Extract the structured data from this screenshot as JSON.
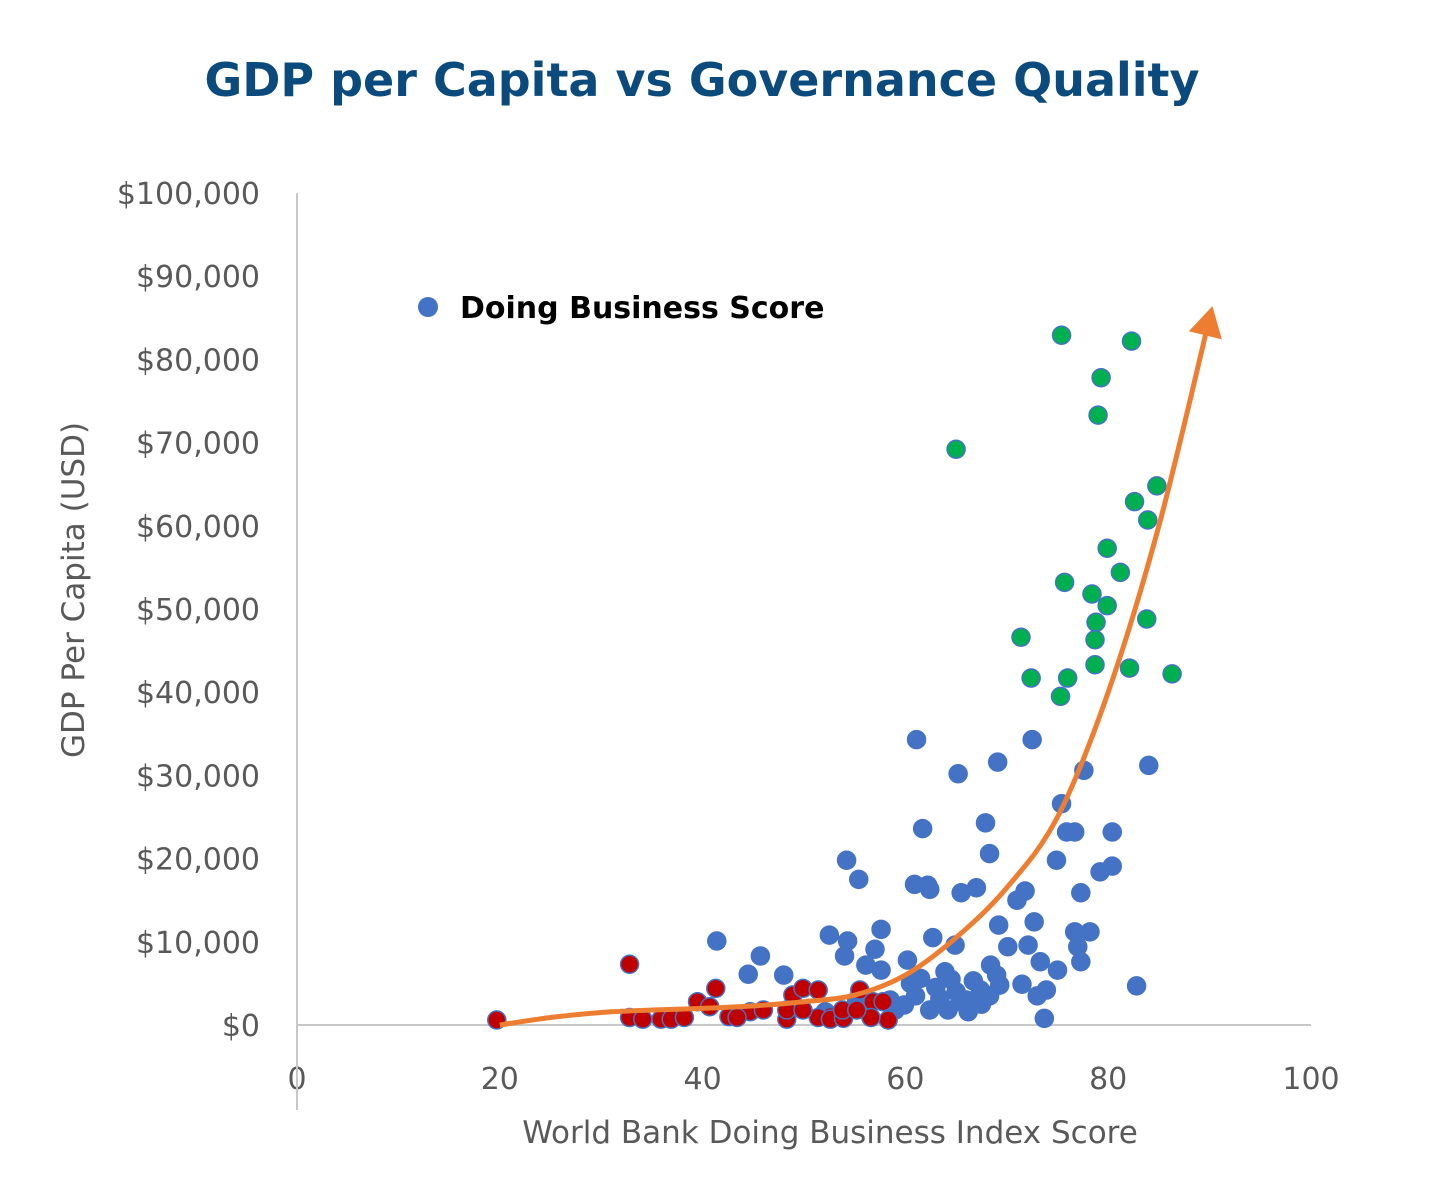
{
  "chart_data": {
    "type": "scatter",
    "title": "GDP per Capita vs Governance Quality",
    "xlabel": "World Bank Doing Business Index Score",
    "ylabel": "GDP Per Capita (USD)",
    "xlim": [
      0,
      100
    ],
    "ylim": [
      0,
      100000
    ],
    "x_ticks": [
      "0",
      "20",
      "40",
      "60",
      "80",
      "100"
    ],
    "y_ticks": [
      "$0",
      "$10,000",
      "$20,000",
      "$30,000",
      "$40,000",
      "$50,000",
      "$60,000",
      "$70,000",
      "$80,000",
      "$90,000",
      "$100,000"
    ],
    "grid": false,
    "legend": {
      "placement": "top-left",
      "entries": [
        "Doing Business Score"
      ]
    },
    "colors": {
      "blue": "#4472c4",
      "green": "#00b050",
      "red": "#c00000",
      "trend": "#ed7d31",
      "title": "#0b4a7d"
    },
    "series": [
      {
        "name": "Doing Business Score",
        "color": "#4472c4",
        "points": [
          [
            61.1,
            34300
          ],
          [
            72.5,
            34300
          ],
          [
            84.0,
            31200
          ],
          [
            69.1,
            31600
          ],
          [
            65.2,
            30200
          ],
          [
            77.6,
            30600
          ],
          [
            75.4,
            26600
          ],
          [
            61.7,
            23600
          ],
          [
            67.9,
            24300
          ],
          [
            75.9,
            23200
          ],
          [
            76.7,
            23200
          ],
          [
            80.4,
            23200
          ],
          [
            68.3,
            20600
          ],
          [
            54.2,
            19800
          ],
          [
            74.9,
            19800
          ],
          [
            80.4,
            19100
          ],
          [
            79.2,
            18400
          ],
          [
            55.4,
            17500
          ],
          [
            60.9,
            16900
          ],
          [
            62.2,
            16800
          ],
          [
            62.4,
            16300
          ],
          [
            65.5,
            15900
          ],
          [
            67.0,
            16500
          ],
          [
            71.8,
            16100
          ],
          [
            77.3,
            15900
          ],
          [
            71.0,
            15000
          ],
          [
            72.7,
            12400
          ],
          [
            57.6,
            11500
          ],
          [
            69.2,
            12000
          ],
          [
            76.7,
            11200
          ],
          [
            78.2,
            11200
          ],
          [
            52.5,
            10800
          ],
          [
            41.4,
            10100
          ],
          [
            54.3,
            10100
          ],
          [
            62.7,
            10500
          ],
          [
            72.1,
            9600
          ],
          [
            70.1,
            9400
          ],
          [
            77.0,
            9400
          ],
          [
            64.9,
            9600
          ],
          [
            57.0,
            9100
          ],
          [
            45.7,
            8300
          ],
          [
            54.0,
            8300
          ],
          [
            60.2,
            7800
          ],
          [
            73.3,
            7600
          ],
          [
            77.3,
            7600
          ],
          [
            56.1,
            7200
          ],
          [
            68.4,
            7200
          ],
          [
            57.6,
            6600
          ],
          [
            75.0,
            6600
          ],
          [
            44.5,
            6100
          ],
          [
            48.0,
            6000
          ],
          [
            69.0,
            6000
          ],
          [
            61.5,
            5600
          ],
          [
            63.9,
            6400
          ],
          [
            71.5,
            4900
          ],
          [
            82.8,
            4700
          ],
          [
            66.7,
            5300
          ],
          [
            73.9,
            4200
          ],
          [
            73.0,
            3500
          ],
          [
            63.4,
            3200
          ],
          [
            65.4,
            2800
          ],
          [
            68.3,
            3500
          ],
          [
            59.9,
            2400
          ],
          [
            64.2,
            1800
          ],
          [
            66.2,
            1600
          ],
          [
            73.7,
            800
          ],
          [
            59.0,
            1800
          ],
          [
            58.5,
            3000
          ],
          [
            55.2,
            3000
          ],
          [
            52.1,
            1600
          ],
          [
            67.4,
            4200
          ],
          [
            62.4,
            1800
          ],
          [
            69.3,
            4800
          ],
          [
            63.0,
            4500
          ],
          [
            65.0,
            4000
          ],
          [
            61.0,
            3500
          ],
          [
            60.5,
            5000
          ],
          [
            64.5,
            5500
          ],
          [
            66.0,
            3000
          ],
          [
            67.5,
            2500
          ]
        ]
      },
      {
        "color": "#00b050",
        "points": [
          [
            75.4,
            82900
          ],
          [
            82.3,
            82200
          ],
          [
            79.3,
            77800
          ],
          [
            79.0,
            73300
          ],
          [
            65.0,
            69200
          ],
          [
            84.8,
            64800
          ],
          [
            82.6,
            62900
          ],
          [
            83.9,
            60700
          ],
          [
            79.9,
            57300
          ],
          [
            81.2,
            54400
          ],
          [
            75.7,
            53200
          ],
          [
            78.4,
            51800
          ],
          [
            79.9,
            50400
          ],
          [
            83.8,
            48800
          ],
          [
            78.8,
            48400
          ],
          [
            78.7,
            46300
          ],
          [
            71.4,
            46600
          ],
          [
            78.7,
            43300
          ],
          [
            82.1,
            42900
          ],
          [
            86.3,
            42200
          ],
          [
            72.4,
            41700
          ],
          [
            76.0,
            41700
          ],
          [
            75.3,
            39500
          ]
        ]
      },
      {
        "color": "#c00000",
        "points": [
          [
            19.7,
            600
          ],
          [
            32.8,
            7300
          ],
          [
            41.3,
            4400
          ],
          [
            39.5,
            2800
          ],
          [
            40.7,
            2200
          ],
          [
            44.7,
            1600
          ],
          [
            48.9,
            3600
          ],
          [
            49.9,
            4400
          ],
          [
            51.4,
            4200
          ],
          [
            52.6,
            1000
          ],
          [
            55.5,
            4200
          ],
          [
            56.8,
            2800
          ],
          [
            57.8,
            2800
          ],
          [
            58.3,
            600
          ],
          [
            32.8,
            900
          ],
          [
            34.1,
            700
          ],
          [
            35.9,
            700
          ],
          [
            36.9,
            700
          ],
          [
            38.2,
            900
          ],
          [
            42.6,
            1000
          ],
          [
            43.4,
            900
          ],
          [
            48.3,
            700
          ],
          [
            51.4,
            900
          ],
          [
            52.6,
            700
          ],
          [
            53.9,
            800
          ],
          [
            56.6,
            900
          ],
          [
            46.0,
            1800
          ],
          [
            48.3,
            1800
          ],
          [
            49.9,
            1800
          ],
          [
            53.8,
            1800
          ],
          [
            55.2,
            1800
          ]
        ]
      }
    ],
    "trendline": {
      "type": "exponential",
      "color": "#ed7d31",
      "points": [
        [
          20,
          0
        ],
        [
          25,
          900
        ],
        [
          30,
          1500
        ],
        [
          35,
          1800
        ],
        [
          40,
          2000
        ],
        [
          45,
          2300
        ],
        [
          50,
          2800
        ],
        [
          55,
          3600
        ],
        [
          60,
          6000
        ],
        [
          65,
          10500
        ],
        [
          70,
          16500
        ],
        [
          75,
          25000
        ],
        [
          80,
          40000
        ],
        [
          85,
          60000
        ],
        [
          90,
          85000
        ]
      ]
    }
  }
}
